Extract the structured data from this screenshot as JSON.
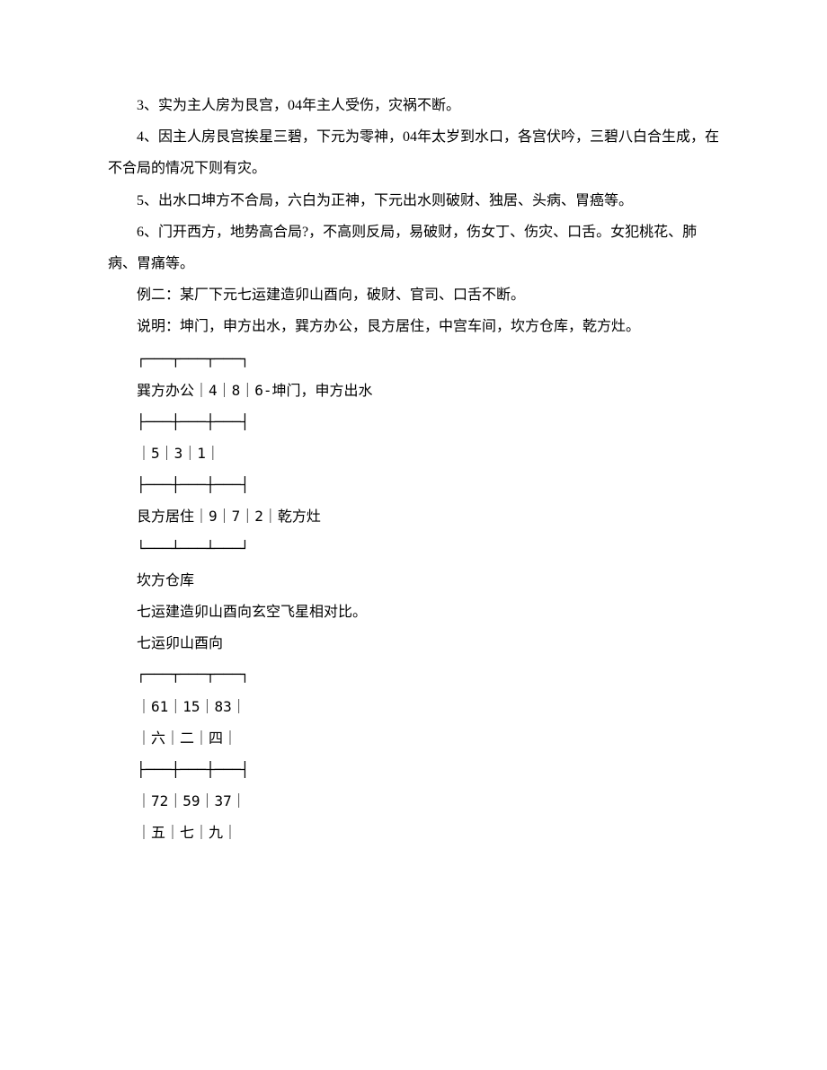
{
  "paragraphs": {
    "p1": "3、实为主人房为艮宫，04年主人受伤，灾祸不断。",
    "p2": "4、因主人房艮宫挨星三碧，下元为零神，04年太岁到水口，各宫伏吟，三碧八白合生成，在不合局的情况下则有灾。",
    "p3": "5、出水口坤方不合局，六白为正神，下元出水则破财、独居、头病、胃癌等。",
    "p4": "6、门开西方，地势高合局?，不高则反局，易破财，伤女丁、伤灾、口舌。女犯桃花、肺病、胃痛等。",
    "p5": "例二：某厂下元七运建造卯山酉向，破财、官司、口舌不断。",
    "p6": "说明：坤门，申方出水，巽方办公，艮方居住，中宫车间，坎方仓库，乾方灶。",
    "p7": "坎方仓库",
    "p8": "七运建造卯山酉向玄空飞星相对比。",
    "p9": "七运卯山酉向"
  },
  "diagram1": {
    "row1": "┌───┬───┬───┐",
    "row2": "巽方办公｜4｜8｜6-坤门，申方出水",
    "row3": "├───┼───┼───┤",
    "row4": "｜5｜3｜1｜",
    "row5": "├───┼───┼───┤",
    "row6": "艮方居住｜9｜7｜2｜乾方灶",
    "row7": "└───┴───┴───┘"
  },
  "diagram2": {
    "row1": "┌───┬───┬───┐",
    "row2": "｜61｜15｜83｜",
    "row3": "｜六｜二｜四｜",
    "row4": "├───┼───┼───┤",
    "row5": "｜72｜59｜37｜",
    "row6": "｜五｜七｜九｜"
  }
}
